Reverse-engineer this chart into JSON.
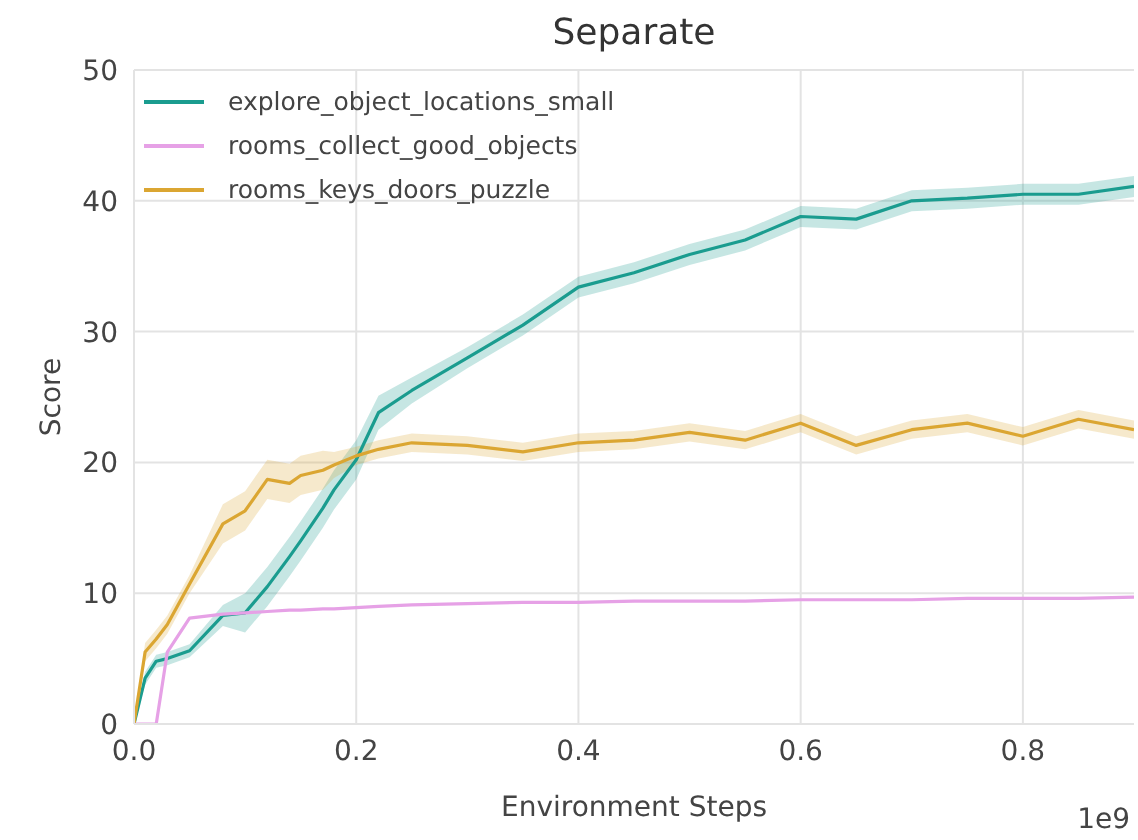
{
  "chart_data": {
    "type": "line",
    "title": "Separate",
    "xlabel": "Environment Steps",
    "ylabel": "Score",
    "annotations": [
      "1e9"
    ],
    "x": [
      0,
      0.01,
      0.02,
      0.03,
      0.05,
      0.08,
      0.1,
      0.12,
      0.14,
      0.15,
      0.17,
      0.18,
      0.2,
      0.22,
      0.25,
      0.3,
      0.35,
      0.4,
      0.45,
      0.5,
      0.55,
      0.6,
      0.65,
      0.7,
      0.75,
      0.8,
      0.85,
      0.9
    ],
    "series": [
      {
        "name": "explore_object_locations_small",
        "color": "#1a9c8f",
        "values": [
          0,
          3.5,
          4.8,
          5.0,
          5.6,
          8.3,
          8.5,
          10.5,
          12.8,
          14,
          16.5,
          17.9,
          20.2,
          23.8,
          25.5,
          28,
          30.5,
          33.4,
          34.5,
          35.9,
          37,
          38.8,
          38.6,
          40,
          40.2,
          40.5,
          40.5,
          41.1
        ],
        "lower": [
          0,
          3,
          4.3,
          4.5,
          5.1,
          7.5,
          7,
          9,
          11.3,
          12.5,
          15,
          16.4,
          18.7,
          22.5,
          24.5,
          27.2,
          29.7,
          32.6,
          33.7,
          35.1,
          36.2,
          38,
          37.8,
          39.2,
          39.4,
          39.7,
          39.7,
          40.3
        ],
        "upper": [
          0,
          4,
          5.3,
          5.5,
          6.1,
          9.1,
          10,
          12,
          14.3,
          15.5,
          18,
          19.4,
          21.7,
          25.1,
          26.5,
          28.8,
          31.3,
          34.2,
          35.3,
          36.7,
          37.8,
          39.6,
          39.4,
          40.8,
          41,
          41.3,
          41.3,
          41.9
        ]
      },
      {
        "name": "rooms_collect_good_objects",
        "color": "#e6a1e6",
        "values": [
          0,
          0,
          0,
          5.5,
          8.1,
          8.4,
          8.5,
          8.6,
          8.7,
          8.7,
          8.8,
          8.8,
          8.9,
          9,
          9.1,
          9.2,
          9.3,
          9.3,
          9.4,
          9.4,
          9.4,
          9.5,
          9.5,
          9.5,
          9.6,
          9.6,
          9.6,
          9.7
        ]
      },
      {
        "name": "rooms_keys_doors_puzzle",
        "color": "#dba632",
        "values": [
          0,
          5.5,
          6.5,
          7.6,
          10.7,
          15.3,
          16.3,
          18.7,
          18.4,
          19,
          19.4,
          19.8,
          20.5,
          21,
          21.5,
          21.3,
          20.8,
          21.5,
          21.7,
          22.3,
          21.7,
          23,
          21.3,
          22.5,
          23,
          22,
          23.3,
          22.5
        ],
        "lower": [
          0,
          4.8,
          5.8,
          6.9,
          10,
          13.8,
          14.8,
          17.2,
          16.9,
          17.5,
          17.9,
          18.8,
          19.8,
          20.3,
          20.8,
          20.6,
          20.1,
          20.8,
          21,
          21.6,
          21,
          22.3,
          20.6,
          21.8,
          22.3,
          21.3,
          22.6,
          21.8
        ],
        "upper": [
          0,
          6.2,
          7.2,
          8.3,
          11.4,
          16.8,
          17.8,
          20.2,
          19.9,
          20.5,
          20.9,
          20.8,
          21.2,
          21.7,
          22.2,
          22,
          21.5,
          22.2,
          22.4,
          23,
          22.4,
          23.7,
          22,
          23.2,
          23.7,
          22.7,
          24,
          23.2
        ]
      }
    ],
    "xlim": [
      0,
      0.9
    ],
    "xticks": [
      {
        "value": 0,
        "label": "0.0"
      },
      0.2,
      0.4,
      0.6,
      0.8
    ],
    "ylim": [
      0,
      50
    ],
    "yticks": [
      0,
      10,
      20,
      30,
      40,
      50
    ],
    "grid": true,
    "legend": "top left",
    "marker": "none",
    "line_style": "solid"
  }
}
